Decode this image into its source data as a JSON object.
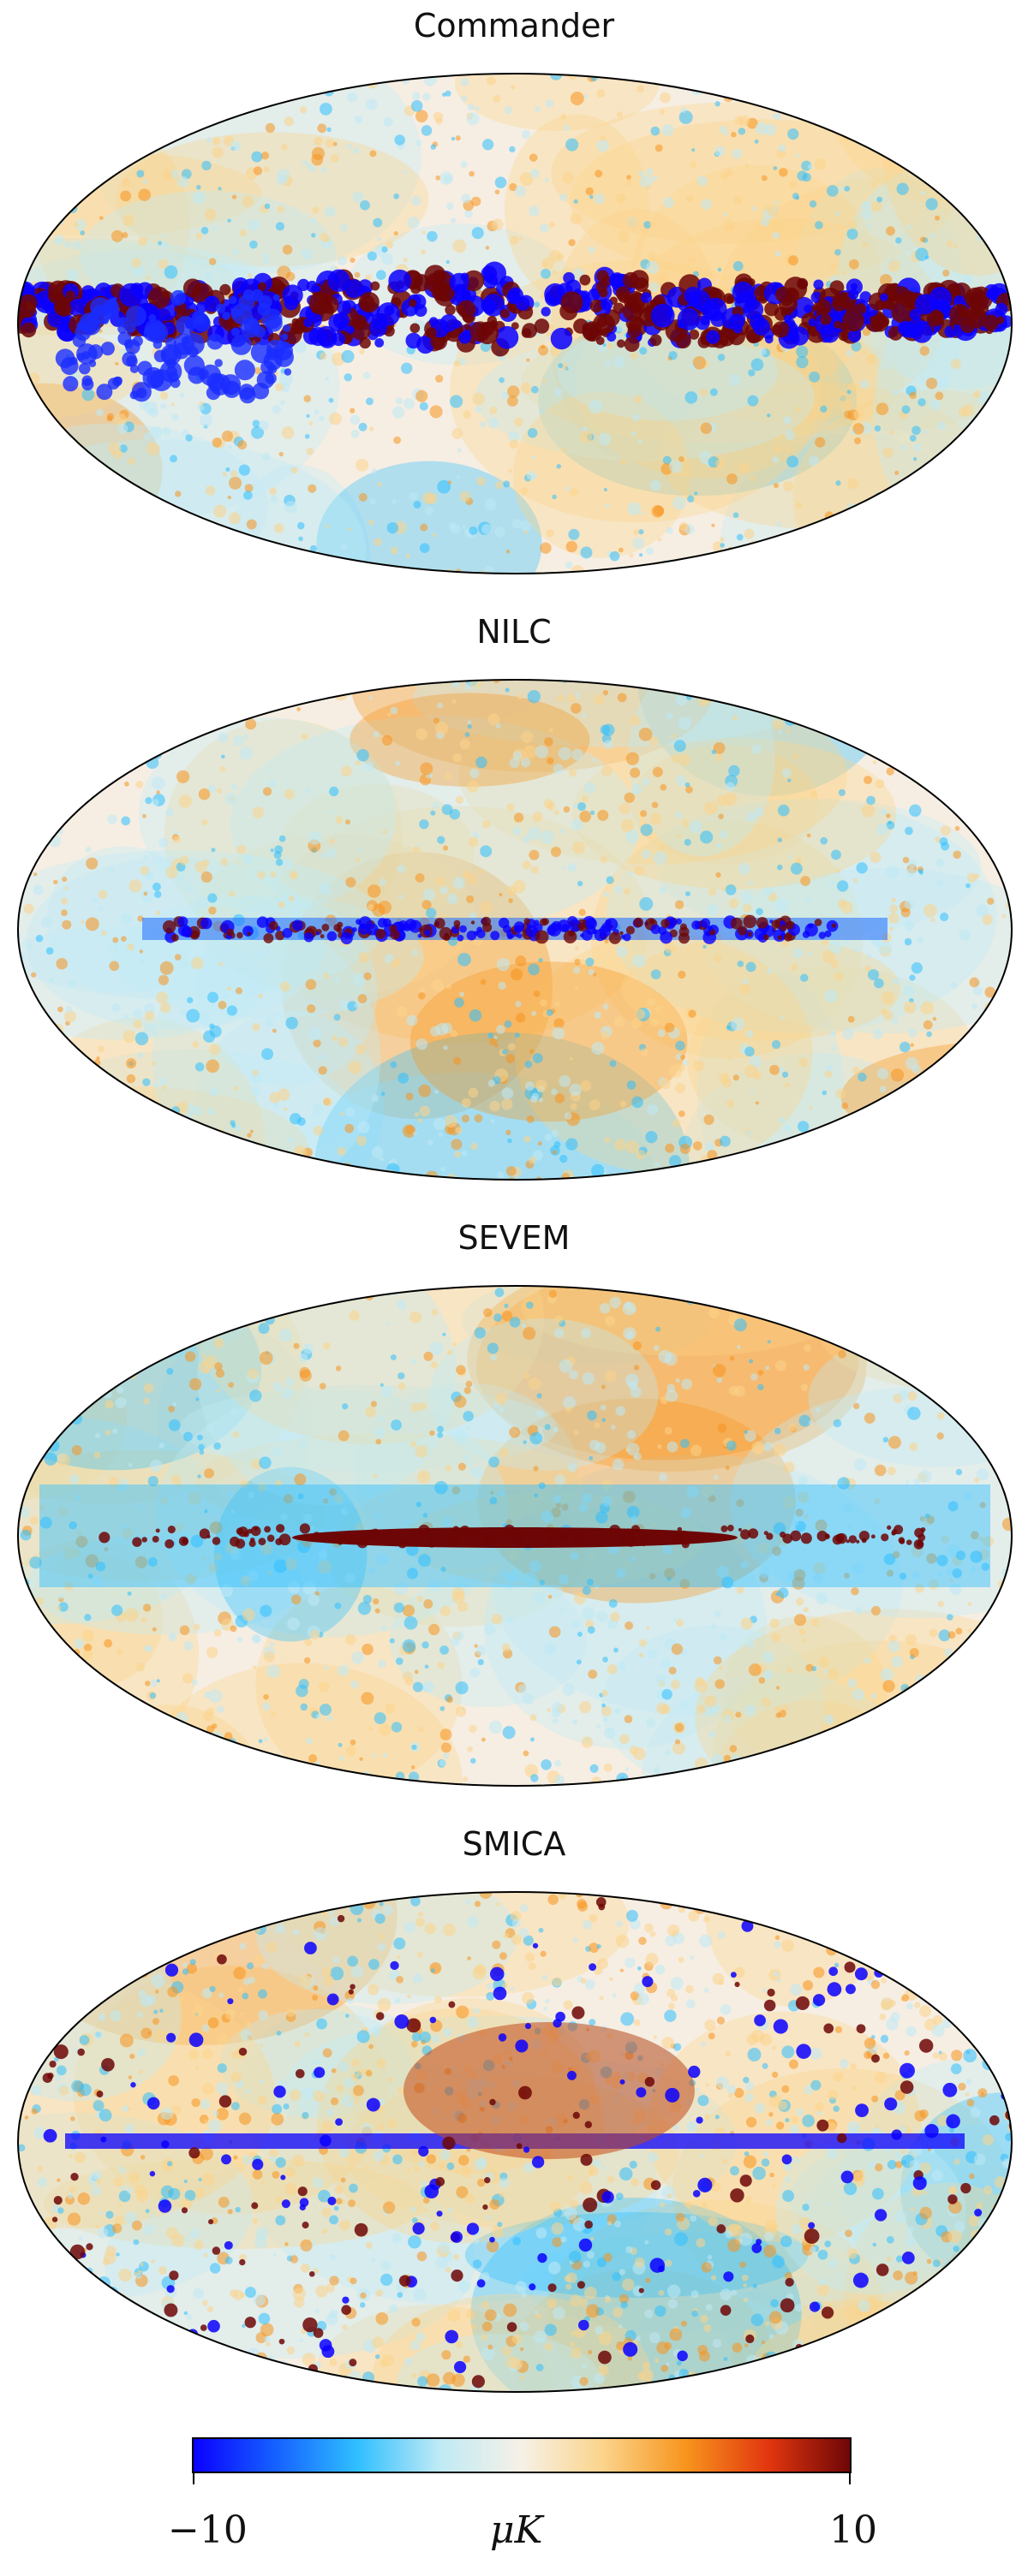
{
  "maps": [
    {
      "title": "Commander",
      "regime": "commander"
    },
    {
      "title": "NILC",
      "regime": "nilc"
    },
    {
      "title": "SEVEM",
      "regime": "sevem"
    },
    {
      "title": "SMICA",
      "regime": "smica"
    }
  ],
  "colorbar": {
    "min_label": "−10",
    "max_label": "10",
    "unit_label": "μK",
    "colors": [
      "#0a00ff",
      "#1560ff",
      "#2fbfff",
      "#bfeaf5",
      "#f6f1e6",
      "#fbd38a",
      "#f7941d",
      "#e2360f",
      "#6d0606"
    ]
  }
}
